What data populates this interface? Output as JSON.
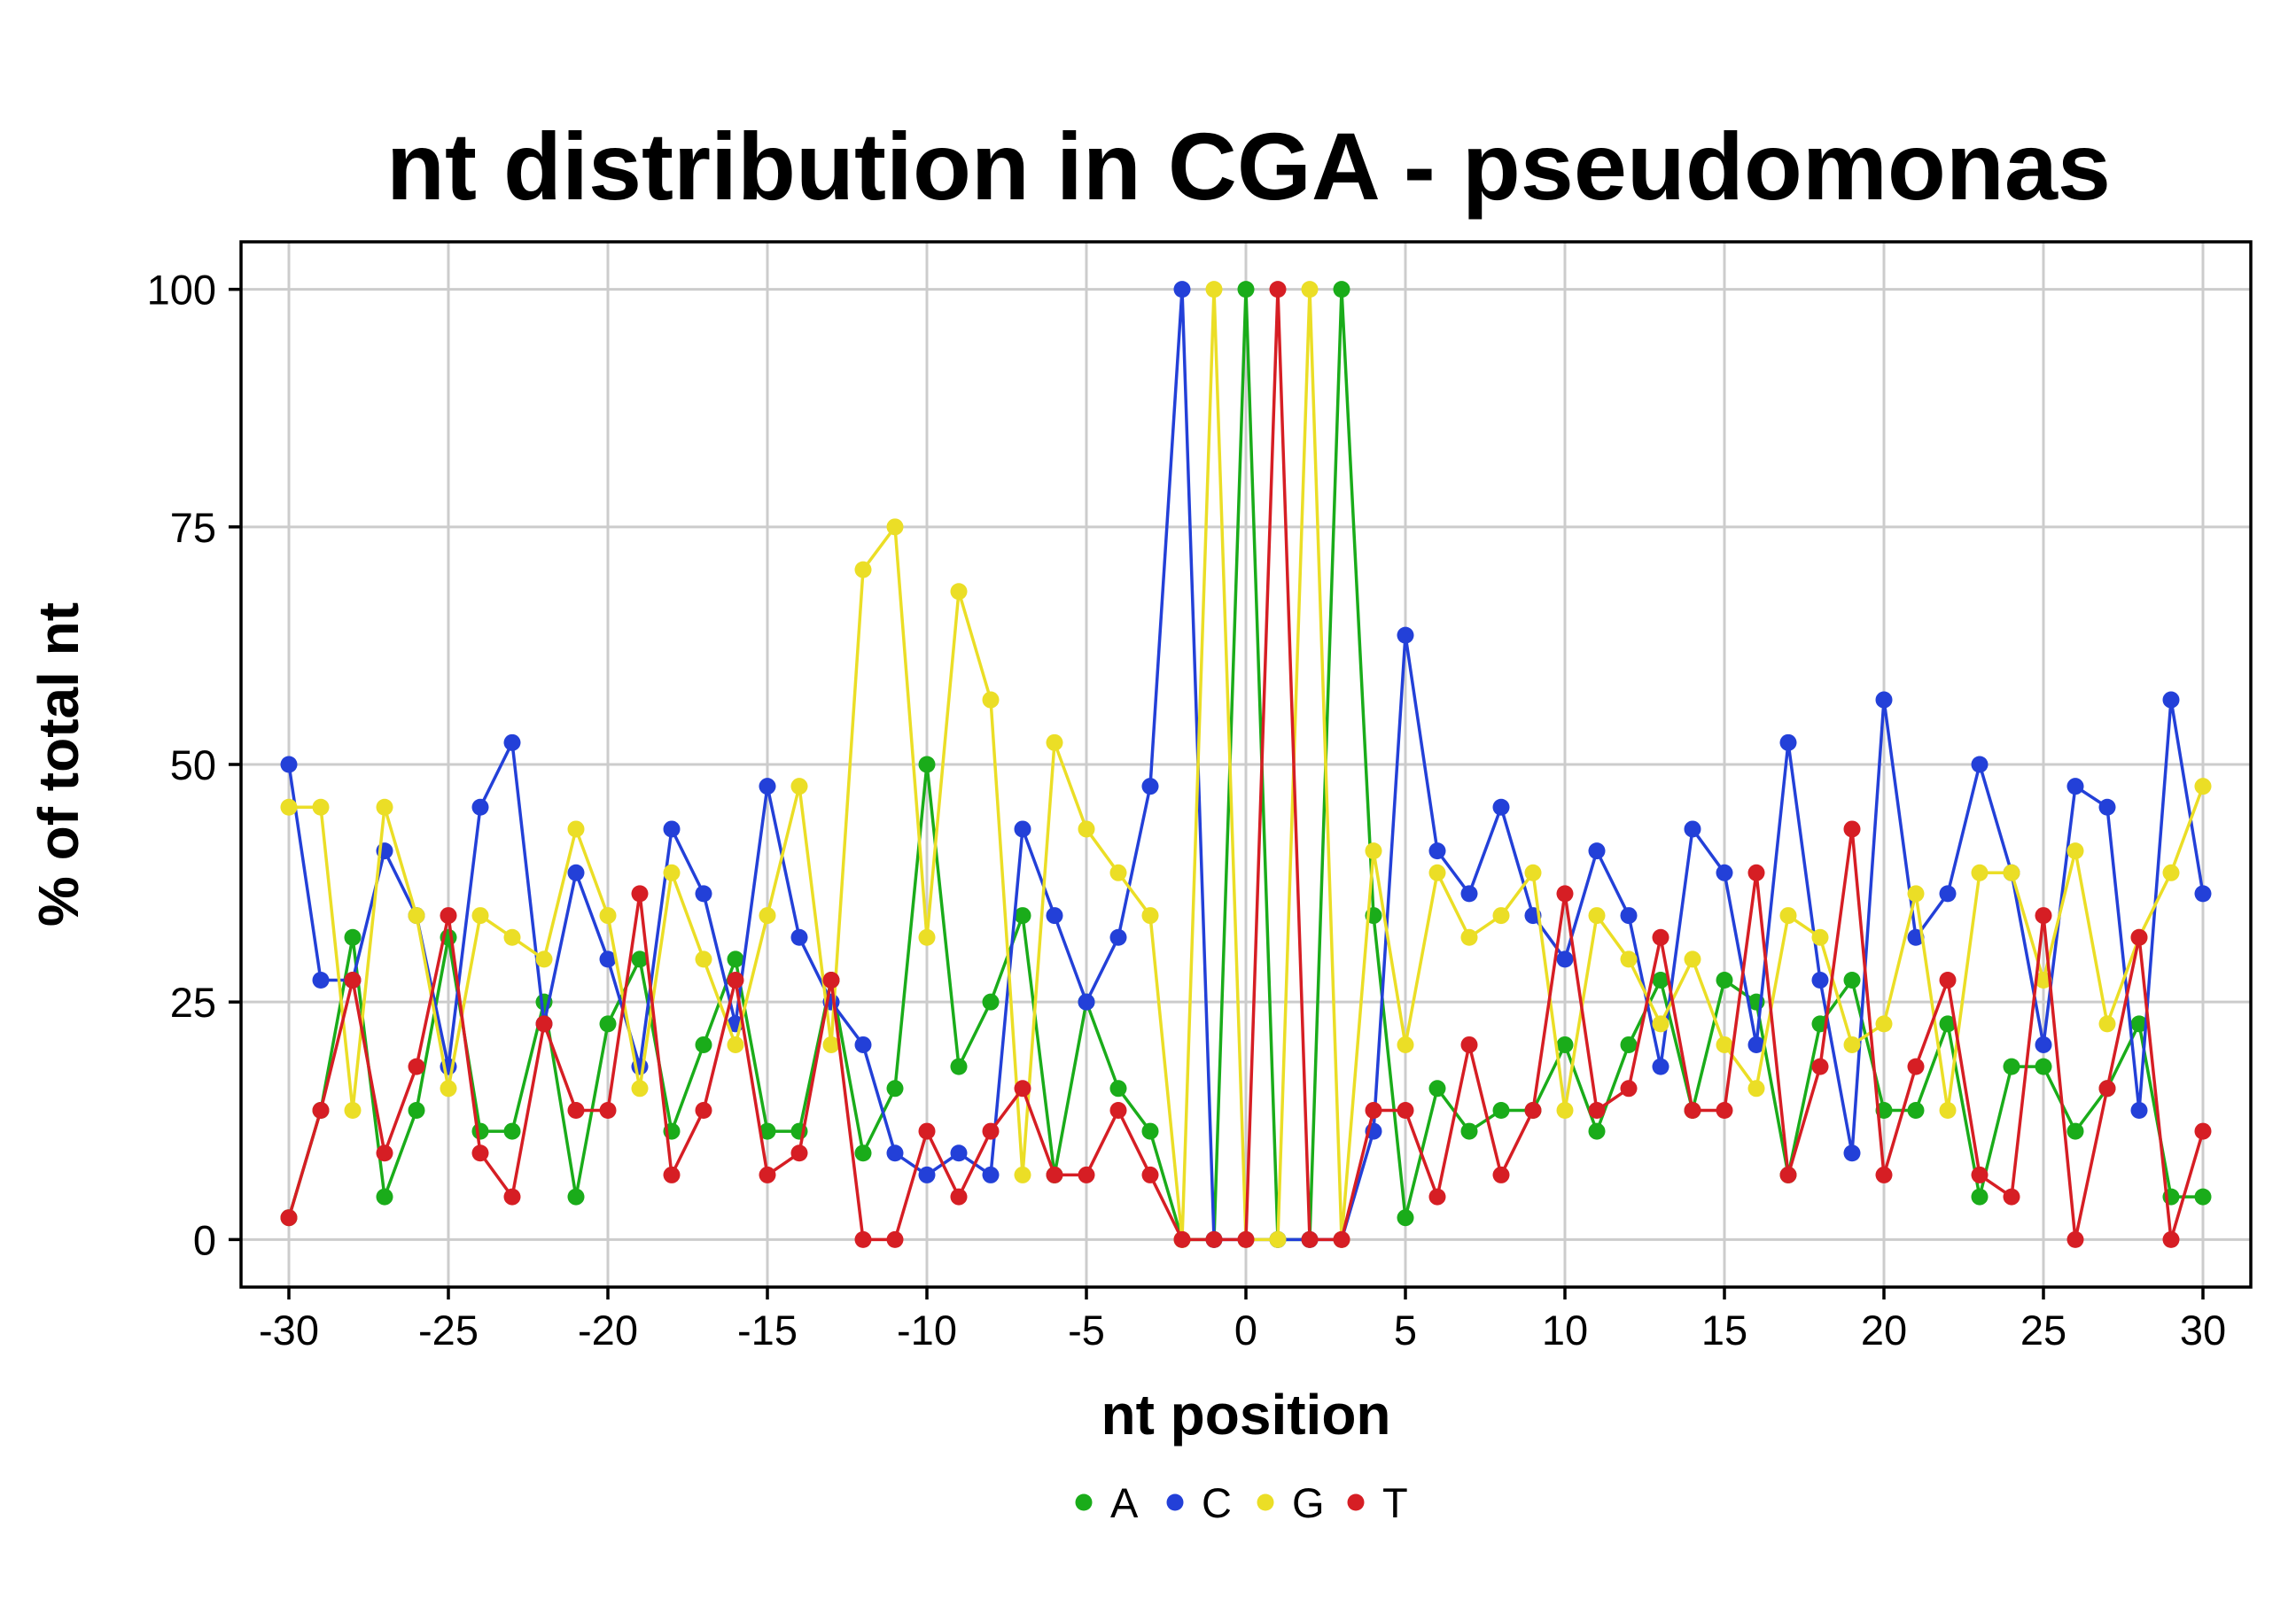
{
  "chart_data": {
    "type": "line",
    "title": "nt distribution in CGA - pseudomonas",
    "xlabel": "nt position",
    "ylabel": "% of total nt",
    "xlim": [
      -31.5,
      31.5
    ],
    "ylim": [
      -5,
      105
    ],
    "xticks": [
      -30,
      -25,
      -20,
      -15,
      -10,
      -5,
      0,
      5,
      10,
      15,
      20,
      25,
      30
    ],
    "xtick_labels": [
      "-30",
      "-25",
      "-20",
      "-15",
      "-10",
      "-5",
      "0",
      "5",
      "10",
      "15",
      "20",
      "25",
      "30"
    ],
    "yticks": [
      0,
      25,
      50,
      75,
      100
    ],
    "ytick_labels": [
      "0",
      "25",
      "50",
      "75",
      "100"
    ],
    "grid": true,
    "legend_position": "bottom",
    "x": [
      -30,
      -29,
      -28,
      -27,
      -26,
      -25,
      -24,
      -23,
      -22,
      -21,
      -20,
      -19,
      -18,
      -17,
      -16,
      -15,
      -14,
      -13,
      -12,
      -11,
      -10,
      -9,
      -8,
      -7,
      -6,
      -5,
      -4,
      -3,
      -2,
      -1,
      0,
      1,
      2,
      3,
      4,
      5,
      6,
      7,
      8,
      9,
      10,
      11,
      12,
      13,
      14,
      15,
      16,
      17,
      18,
      19,
      20,
      21,
      22,
      23,
      24,
      25,
      26,
      27,
      28,
      29,
      30
    ],
    "series": [
      {
        "name": "A",
        "color": "#1aac1a",
        "values": [
          2.3,
          13.6,
          31.8,
          4.5,
          13.6,
          31.8,
          11.4,
          11.4,
          25.0,
          4.5,
          22.7,
          29.5,
          11.4,
          20.5,
          29.5,
          11.4,
          11.4,
          27.3,
          9.1,
          15.9,
          50.0,
          18.2,
          25.0,
          34.1,
          6.8,
          25.0,
          15.9,
          11.4,
          0,
          0,
          100,
          0,
          0,
          100,
          34.1,
          2.3,
          15.9,
          11.4,
          13.6,
          13.6,
          20.5,
          11.4,
          20.5,
          27.3,
          13.6,
          27.3,
          25.0,
          6.8,
          22.7,
          27.3,
          13.6,
          13.6,
          22.7,
          4.5,
          18.2,
          18.2,
          11.4,
          15.9,
          22.7,
          4.5,
          4.5
        ]
      },
      {
        "name": "C",
        "color": "#2340d8",
        "values": [
          50.0,
          27.3,
          27.3,
          40.9,
          34.1,
          18.2,
          45.5,
          52.3,
          22.7,
          38.6,
          29.5,
          18.2,
          43.2,
          36.4,
          22.7,
          47.7,
          31.8,
          25.0,
          20.5,
          9.1,
          6.8,
          9.1,
          6.8,
          43.2,
          34.1,
          25.0,
          31.8,
          47.7,
          100,
          0,
          0,
          0,
          0,
          0,
          11.4,
          63.6,
          40.9,
          36.4,
          45.5,
          34.1,
          29.5,
          40.9,
          34.1,
          18.2,
          43.2,
          38.6,
          20.5,
          52.3,
          27.3,
          9.1,
          56.8,
          31.8,
          36.4,
          50.0,
          38.6,
          20.5,
          47.7,
          45.5,
          13.6,
          56.8,
          36.4
        ]
      },
      {
        "name": "G",
        "color": "#ebde26",
        "values": [
          45.5,
          45.5,
          13.6,
          45.5,
          34.1,
          15.9,
          34.1,
          31.8,
          29.5,
          43.2,
          34.1,
          15.9,
          38.6,
          29.5,
          20.5,
          34.1,
          47.7,
          20.5,
          70.5,
          75.0,
          31.8,
          68.2,
          56.8,
          6.8,
          52.3,
          43.2,
          38.6,
          34.1,
          0,
          100,
          0,
          0,
          100,
          0,
          40.9,
          20.5,
          38.6,
          31.8,
          34.1,
          38.6,
          13.6,
          34.1,
          29.5,
          22.7,
          29.5,
          20.5,
          15.9,
          34.1,
          31.8,
          20.5,
          22.7,
          36.4,
          13.6,
          38.6,
          38.6,
          27.3,
          40.9,
          22.7,
          31.8,
          38.6,
          47.7
        ]
      },
      {
        "name": "T",
        "color": "#d61e24",
        "values": [
          2.3,
          13.6,
          27.3,
          9.1,
          18.2,
          34.1,
          9.1,
          4.5,
          22.7,
          13.6,
          13.6,
          36.4,
          6.8,
          13.6,
          27.3,
          6.8,
          9.1,
          27.3,
          0,
          0,
          11.4,
          4.5,
          11.4,
          15.9,
          6.8,
          6.8,
          13.6,
          6.8,
          0,
          0,
          0,
          100,
          0,
          0,
          13.6,
          13.6,
          4.5,
          20.5,
          6.8,
          13.6,
          36.4,
          13.6,
          15.9,
          31.8,
          13.6,
          13.6,
          38.6,
          6.8,
          18.2,
          43.2,
          6.8,
          18.2,
          27.3,
          6.8,
          4.5,
          34.1,
          0,
          15.9,
          31.8,
          0,
          11.4
        ]
      }
    ]
  }
}
